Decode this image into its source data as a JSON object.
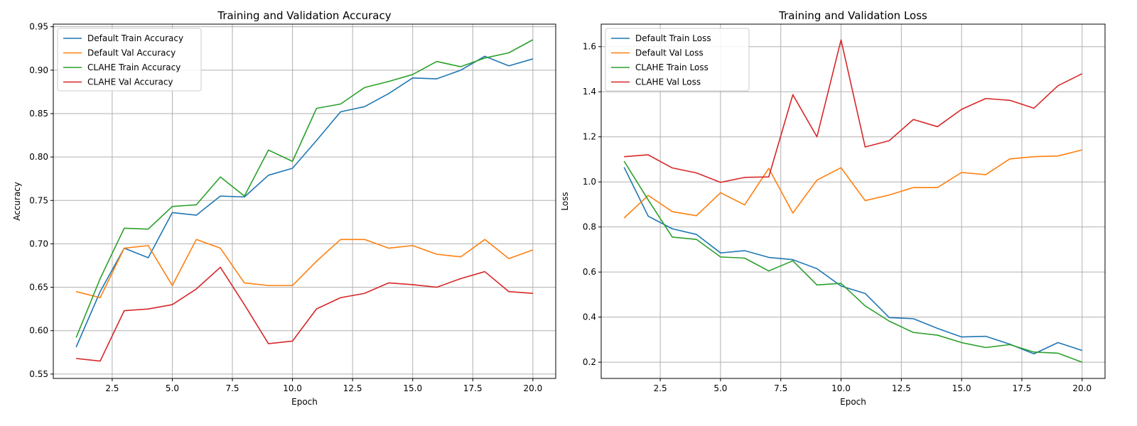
{
  "chart_data": [
    {
      "type": "line",
      "title": "Training and Validation Accuracy",
      "xlabel": "Epoch",
      "ylabel": "Accuracy",
      "xlim": [
        0.05,
        20.95
      ],
      "ylim": [
        0.545,
        0.953
      ],
      "xticks": [
        2.5,
        5.0,
        7.5,
        10.0,
        12.5,
        15.0,
        17.5,
        20.0
      ],
      "xtick_labels": [
        "2.5",
        "5.0",
        "7.5",
        "10.0",
        "12.5",
        "15.0",
        "17.5",
        "20.0"
      ],
      "yticks": [
        0.55,
        0.6,
        0.65,
        0.7,
        0.75,
        0.8,
        0.85,
        0.9,
        0.95
      ],
      "ytick_labels": [
        "0.55",
        "0.60",
        "0.65",
        "0.70",
        "0.75",
        "0.80",
        "0.85",
        "0.90",
        "0.95"
      ],
      "grid": true,
      "legend_position": "top-left",
      "x": [
        1,
        2,
        3,
        4,
        5,
        6,
        7,
        8,
        9,
        10,
        11,
        12,
        13,
        14,
        15,
        16,
        17,
        18,
        19,
        20
      ],
      "series": [
        {
          "name": "Default Train Accuracy",
          "color": "#1f77b4",
          "values": [
            0.581,
            0.645,
            0.695,
            0.684,
            0.736,
            0.733,
            0.755,
            0.754,
            0.779,
            0.787,
            0.819,
            0.852,
            0.858,
            0.873,
            0.891,
            0.89,
            0.9,
            0.916,
            0.905,
            0.913
          ]
        },
        {
          "name": "Default Val Accuracy",
          "color": "#ff7f0e",
          "values": [
            0.645,
            0.638,
            0.695,
            0.698,
            0.652,
            0.705,
            0.695,
            0.655,
            0.652,
            0.652,
            0.68,
            0.705,
            0.705,
            0.695,
            0.698,
            0.688,
            0.685,
            0.705,
            0.683,
            0.693
          ]
        },
        {
          "name": "CLAHE Train Accuracy",
          "color": "#2ca02c",
          "values": [
            0.592,
            0.66,
            0.718,
            0.717,
            0.743,
            0.745,
            0.777,
            0.755,
            0.808,
            0.795,
            0.856,
            0.861,
            0.88,
            0.887,
            0.895,
            0.91,
            0.904,
            0.914,
            0.92,
            0.935
          ]
        },
        {
          "name": "CLAHE Val Accuracy",
          "color": "#d62728",
          "values": [
            0.568,
            0.565,
            0.623,
            0.625,
            0.63,
            0.648,
            0.673,
            0.63,
            0.585,
            0.588,
            0.625,
            0.638,
            0.643,
            0.655,
            0.653,
            0.65,
            0.66,
            0.668,
            0.645,
            0.643
          ]
        }
      ]
    },
    {
      "type": "line",
      "title": "Training and Validation Loss",
      "xlabel": "Epoch",
      "ylabel": "Loss",
      "xlim": [
        0.05,
        20.95
      ],
      "ylim": [
        0.128,
        1.7
      ],
      "xticks": [
        2.5,
        5.0,
        7.5,
        10.0,
        12.5,
        15.0,
        17.5,
        20.0
      ],
      "xtick_labels": [
        "2.5",
        "5.0",
        "7.5",
        "10.0",
        "12.5",
        "15.0",
        "17.5",
        "20.0"
      ],
      "yticks": [
        0.2,
        0.4,
        0.6,
        0.8,
        1.0,
        1.2,
        1.4,
        1.6
      ],
      "ytick_labels": [
        "0.2",
        "0.4",
        "0.6",
        "0.8",
        "1.0",
        "1.2",
        "1.4",
        "1.6"
      ],
      "grid": true,
      "legend_position": "top-left",
      "x": [
        1,
        2,
        3,
        4,
        5,
        6,
        7,
        8,
        9,
        10,
        11,
        12,
        13,
        14,
        15,
        16,
        17,
        18,
        19,
        20
      ],
      "series": [
        {
          "name": "Default Train Loss",
          "color": "#1f77b4",
          "values": [
            1.065,
            0.848,
            0.792,
            0.767,
            0.685,
            0.695,
            0.665,
            0.655,
            0.615,
            0.538,
            0.505,
            0.398,
            0.393,
            0.35,
            0.312,
            0.315,
            0.28,
            0.237,
            0.287,
            0.252
          ]
        },
        {
          "name": "Default Val Loss",
          "color": "#ff7f0e",
          "values": [
            0.84,
            0.94,
            0.868,
            0.85,
            0.952,
            0.898,
            1.06,
            0.862,
            1.008,
            1.063,
            0.917,
            0.942,
            0.975,
            0.975,
            1.042,
            1.032,
            1.102,
            1.112,
            1.115,
            1.142
          ]
        },
        {
          "name": "CLAHE Train Loss",
          "color": "#2ca02c",
          "values": [
            1.092,
            0.92,
            0.755,
            0.745,
            0.667,
            0.662,
            0.605,
            0.65,
            0.543,
            0.55,
            0.45,
            0.382,
            0.332,
            0.32,
            0.287,
            0.265,
            0.278,
            0.245,
            0.24,
            0.2
          ]
        },
        {
          "name": "CLAHE Val Loss",
          "color": "#d62728",
          "values": [
            1.112,
            1.12,
            1.062,
            1.04,
            0.998,
            1.02,
            1.022,
            1.387,
            1.2,
            1.63,
            1.155,
            1.183,
            1.277,
            1.245,
            1.322,
            1.37,
            1.362,
            1.327,
            1.427,
            1.48
          ]
        }
      ]
    }
  ]
}
